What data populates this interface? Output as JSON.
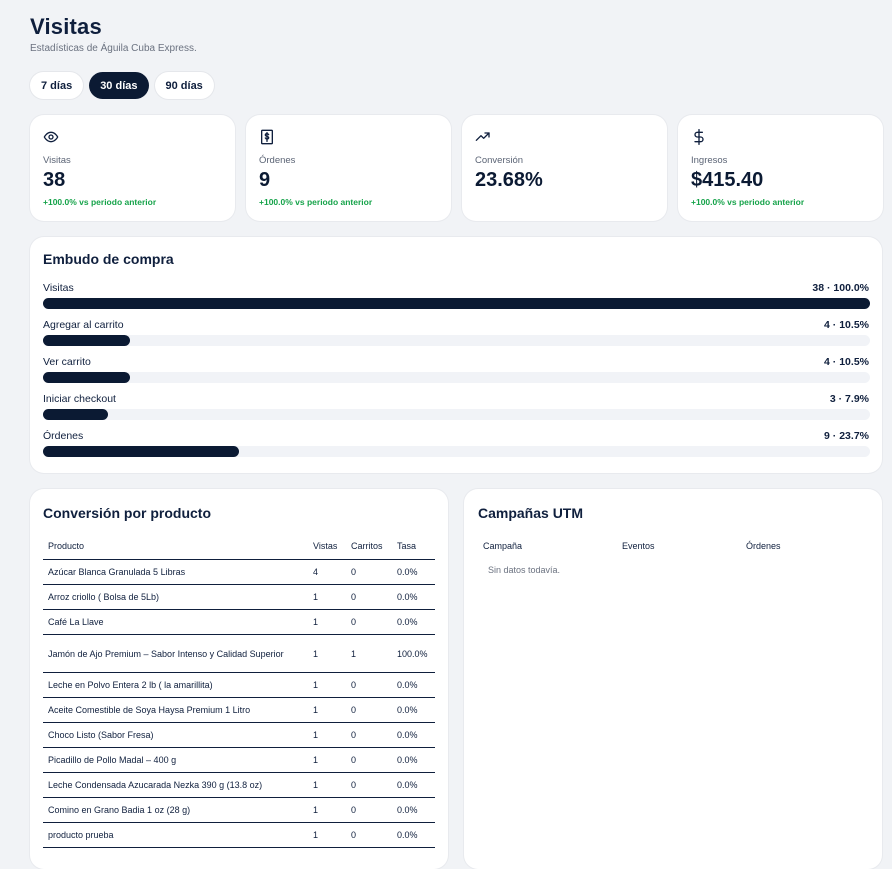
{
  "header": {
    "title": "Visitas",
    "subtitle": "Estadísticas de Águila Cuba Express."
  },
  "range_tabs": [
    {
      "label": "7 días",
      "active": false
    },
    {
      "label": "30 días",
      "active": true
    },
    {
      "label": "90 días",
      "active": false
    }
  ],
  "kpis": [
    {
      "icon": "eye-icon",
      "label": "Visitas",
      "value": "38",
      "delta": "+100.0% vs periodo anterior"
    },
    {
      "icon": "receipt-icon",
      "label": "Órdenes",
      "value": "9",
      "delta": "+100.0% vs periodo anterior"
    },
    {
      "icon": "trending-up-icon",
      "label": "Conversión",
      "value": "23.68%",
      "delta": ""
    },
    {
      "icon": "dollar-icon",
      "label": "Ingresos",
      "value": "$415.40",
      "delta": "+100.0% vs periodo anterior"
    }
  ],
  "funnel": {
    "title": "Embudo de compra",
    "steps": [
      {
        "label": "Visitas",
        "count": "38 · 100.0%",
        "fraction": 1.0
      },
      {
        "label": "Agregar al carrito",
        "count": "4 · 10.5%",
        "fraction": 0.105
      },
      {
        "label": "Ver carrito",
        "count": "4 · 10.5%",
        "fraction": 0.105
      },
      {
        "label": "Iniciar checkout",
        "count": "3 · 7.9%",
        "fraction": 0.079
      },
      {
        "label": "Órdenes",
        "count": "9 · 23.7%",
        "fraction": 0.237
      }
    ]
  },
  "products": {
    "title": "Conversión por producto",
    "columns": [
      "Producto",
      "Vistas",
      "Carritos",
      "Tasa"
    ],
    "rows": [
      {
        "name": "Azúcar Blanca Granulada 5 Libras",
        "views": "4",
        "carts": "0",
        "rate": "0.0%"
      },
      {
        "name": "Arroz criollo ( Bolsa de 5Lb)",
        "views": "1",
        "carts": "0",
        "rate": "0.0%"
      },
      {
        "name": "Café La Llave",
        "views": "1",
        "carts": "0",
        "rate": "0.0%"
      },
      {
        "name": "Jamón de Ajo Premium – Sabor Intenso y Calidad Superior",
        "views": "1",
        "carts": "1",
        "rate": "100.0%"
      },
      {
        "name": "Leche en Polvo Entera 2 lb ( la amarillita)",
        "views": "1",
        "carts": "0",
        "rate": "0.0%"
      },
      {
        "name": "Aceite Comestible de Soya Haysa Premium 1 Litro",
        "views": "1",
        "carts": "0",
        "rate": "0.0%"
      },
      {
        "name": "Choco Listo (Sabor Fresa)",
        "views": "1",
        "carts": "0",
        "rate": "0.0%"
      },
      {
        "name": "Picadillo de Pollo Madal – 400 g",
        "views": "1",
        "carts": "0",
        "rate": "0.0%"
      },
      {
        "name": "Leche Condensada Azucarada Nezka 390 g (13.8 oz)",
        "views": "1",
        "carts": "0",
        "rate": "0.0%"
      },
      {
        "name": "Comino en Grano Badia 1 oz (28 g)",
        "views": "1",
        "carts": "0",
        "rate": "0.0%"
      },
      {
        "name": "producto prueba",
        "views": "1",
        "carts": "0",
        "rate": "0.0%"
      }
    ]
  },
  "utm": {
    "title": "Campañas UTM",
    "columns": [
      "Campaña",
      "Eventos",
      "Órdenes"
    ],
    "empty_text": "Sin datos todavía."
  },
  "colors": {
    "primary": "#0b1a33",
    "positive": "#16a34a",
    "background": "#f1f3f6"
  }
}
